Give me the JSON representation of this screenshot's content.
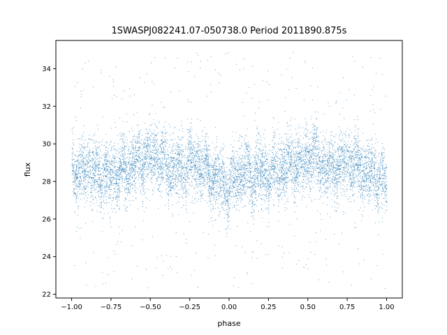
{
  "chart_data": {
    "type": "scatter",
    "title": "1SWASPJ082241.07-050738.0 Period 2011890.875s",
    "xlabel": "phase",
    "ylabel": "flux",
    "xlim": [
      -1.1,
      1.1
    ],
    "ylim": [
      21.8,
      35.5
    ],
    "xticks": [
      -1.0,
      -0.75,
      -0.5,
      -0.25,
      0.0,
      0.25,
      0.5,
      0.75,
      1.0
    ],
    "xtick_labels": [
      "−1.00",
      "−0.75",
      "−0.50",
      "−0.25",
      "0.00",
      "0.25",
      "0.50",
      "0.75",
      "1.00"
    ],
    "yticks": [
      22,
      24,
      26,
      28,
      30,
      32,
      34
    ],
    "ytick_labels": [
      "22",
      "24",
      "26",
      "28",
      "30",
      "32",
      "34"
    ],
    "grid": false,
    "marker_color": "#1f77b4",
    "phase_range": [
      -1.0,
      1.0
    ],
    "series": [
      {
        "profile": [
          {
            "x": -1.0,
            "y": 28.9
          },
          {
            "x": -0.95,
            "y": 28.3
          },
          {
            "x": -0.9,
            "y": 28.9
          },
          {
            "x": -0.85,
            "y": 28.3
          },
          {
            "x": -0.8,
            "y": 28.4
          },
          {
            "x": -0.75,
            "y": 28.2
          },
          {
            "x": -0.7,
            "y": 28.6
          },
          {
            "x": -0.65,
            "y": 28.6
          },
          {
            "x": -0.6,
            "y": 29.1
          },
          {
            "x": -0.55,
            "y": 29.2
          },
          {
            "x": -0.5,
            "y": 29.4
          },
          {
            "x": -0.45,
            "y": 29.3
          },
          {
            "x": -0.4,
            "y": 28.7
          },
          {
            "x": -0.35,
            "y": 28.6
          },
          {
            "x": -0.3,
            "y": 28.7
          },
          {
            "x": -0.25,
            "y": 29.0
          },
          {
            "x": -0.2,
            "y": 29.0
          },
          {
            "x": -0.15,
            "y": 28.6
          },
          {
            "x": -0.1,
            "y": 28.2
          },
          {
            "x": -0.05,
            "y": 28.0
          },
          {
            "x": 0.0,
            "y": 27.6
          },
          {
            "x": 0.05,
            "y": 28.4
          },
          {
            "x": 0.1,
            "y": 28.6
          },
          {
            "x": 0.15,
            "y": 28.3
          },
          {
            "x": 0.2,
            "y": 28.4
          },
          {
            "x": 0.25,
            "y": 28.3
          },
          {
            "x": 0.3,
            "y": 28.6
          },
          {
            "x": 0.35,
            "y": 28.7
          },
          {
            "x": 0.4,
            "y": 29.0
          },
          {
            "x": 0.45,
            "y": 28.9
          },
          {
            "x": 0.5,
            "y": 29.2
          },
          {
            "x": 0.55,
            "y": 29.4
          },
          {
            "x": 0.6,
            "y": 28.8
          },
          {
            "x": 0.65,
            "y": 28.7
          },
          {
            "x": 0.7,
            "y": 28.9
          },
          {
            "x": 0.75,
            "y": 29.0
          },
          {
            "x": 0.8,
            "y": 29.0
          },
          {
            "x": 0.85,
            "y": 28.5
          },
          {
            "x": 0.9,
            "y": 28.4
          },
          {
            "x": 0.95,
            "y": 28.2
          },
          {
            "x": 1.0,
            "y": 27.8
          }
        ],
        "scatter_sd": 1.1,
        "n_points": 9000,
        "outlier_fraction": 0.05,
        "outlier_range": [
          22.3,
          34.9
        ]
      }
    ]
  }
}
